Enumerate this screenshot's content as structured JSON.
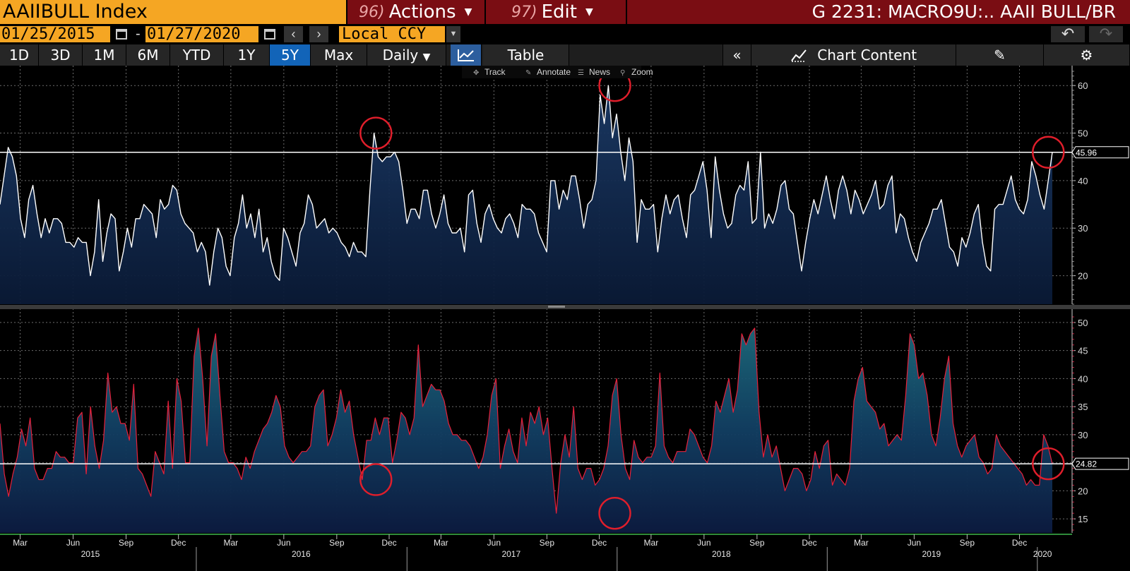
{
  "header": {
    "ticker": "AAIIBULL Index",
    "actions_num": "96)",
    "actions_label": "Actions",
    "edit_num": "97)",
    "edit_label": "Edit",
    "chart_title": "G 2231: MACRO9U:.. AAII BULL/BR"
  },
  "date_range": {
    "start": "01/25/2015",
    "separator": "-",
    "end": "01/27/2020",
    "currency": "Local CCY"
  },
  "toolbar": {
    "ranges": [
      "1D",
      "3D",
      "1M",
      "6M",
      "YTD",
      "1Y",
      "5Y",
      "Max"
    ],
    "active_range": "5Y",
    "frequency": "Daily",
    "table_label": "Table",
    "chart_content_label": "Chart Content"
  },
  "chart_tools": [
    "Track",
    "Annotate",
    "News",
    "Zoom"
  ],
  "colors": {
    "accent_orange": "#f5a623",
    "menu_red": "#7a0d13",
    "active_blue": "#1264b8",
    "upper_line": "#ffffff",
    "lower_line": "#e8203a",
    "marker_circle": "#e01e2b"
  },
  "chart_data": [
    {
      "type": "area",
      "y_ticks": [
        20,
        30,
        40,
        50,
        60
      ],
      "ylim": [
        14,
        63
      ],
      "last_value": "45.96",
      "reference_line": 45.96,
      "x_start": "2015-01-25",
      "x_end": "2020-01-27",
      "series": [
        {
          "values": [
            35,
            41,
            47,
            45,
            41,
            32,
            28,
            36,
            39,
            33,
            28,
            32,
            29,
            32,
            32,
            31,
            27,
            27,
            26,
            28,
            27,
            27,
            20,
            25,
            36,
            23,
            29,
            33,
            32,
            21,
            25,
            30,
            26,
            32,
            32,
            35,
            34,
            33,
            28,
            36,
            34,
            35,
            39,
            38,
            33,
            31,
            30,
            29,
            25,
            27,
            25,
            18,
            25,
            30,
            28,
            22,
            20,
            28,
            31,
            37,
            30,
            33,
            28,
            34,
            25,
            28,
            23,
            20,
            19,
            30,
            28,
            25,
            22,
            29,
            31,
            37,
            35,
            30,
            31,
            32,
            29,
            30,
            29,
            27,
            26,
            24,
            27,
            25,
            25,
            24,
            38,
            50,
            45,
            44,
            45,
            45,
            46,
            44,
            38,
            31,
            34,
            34,
            32,
            38,
            38,
            33,
            30,
            33,
            37,
            31,
            29,
            29,
            30,
            25,
            37,
            38,
            31,
            27,
            33,
            35,
            32,
            30,
            29,
            32,
            33,
            31,
            28,
            35,
            34,
            34,
            33,
            29,
            27,
            25,
            40,
            40,
            34,
            38,
            36,
            41,
            41,
            36,
            30,
            35,
            36,
            40,
            58,
            52,
            60,
            49,
            54,
            46,
            40,
            49,
            44,
            27,
            36,
            34,
            34,
            35,
            25,
            32,
            37,
            33,
            36,
            37,
            32,
            28,
            37,
            38,
            41,
            44,
            38,
            28,
            45,
            38,
            33,
            30,
            31,
            37,
            39,
            38,
            44,
            31,
            32,
            46,
            30,
            33,
            31,
            34,
            39,
            40,
            34,
            33,
            27,
            21,
            27,
            32,
            36,
            33,
            37,
            41,
            36,
            32,
            38,
            41,
            38,
            33,
            38,
            36,
            33,
            35,
            37,
            40,
            34,
            35,
            39,
            41,
            29,
            33,
            32,
            28,
            25,
            23,
            27,
            29,
            31,
            34,
            34,
            36,
            31,
            26,
            25,
            22,
            28,
            26,
            29,
            33,
            35,
            27,
            22,
            21,
            34,
            35,
            35,
            38,
            41,
            36,
            34,
            33,
            36,
            44,
            41,
            37,
            34,
            40,
            45.96
          ]
        }
      ]
    },
    {
      "type": "area",
      "y_ticks": [
        15,
        20,
        25,
        30,
        35,
        40,
        45,
        50
      ],
      "ylim": [
        12.5,
        51.5
      ],
      "last_value": "24.82",
      "reference_line": 24.82,
      "x_start": "2015-01-25",
      "x_end": "2020-01-27",
      "series": [
        {
          "values": [
            32,
            23,
            19,
            23,
            26,
            31,
            28,
            33,
            24,
            22,
            22,
            24,
            24,
            27,
            26,
            26,
            25,
            25,
            33,
            34,
            23,
            35,
            28,
            24,
            29,
            41,
            34,
            35,
            32,
            32,
            29,
            39,
            24,
            23,
            21,
            19,
            27,
            25,
            23,
            36,
            24,
            40,
            36,
            25,
            25,
            44,
            49,
            40,
            28,
            44,
            48,
            37,
            27,
            25,
            25,
            24,
            22,
            26,
            24,
            27,
            29,
            31,
            32,
            34,
            37,
            35,
            28,
            26,
            25,
            26,
            27,
            27,
            28,
            35,
            37,
            38,
            28,
            30,
            33,
            38,
            34,
            36,
            30,
            26,
            22,
            29,
            29,
            33,
            30,
            33,
            33,
            25,
            29,
            34,
            33,
            30,
            33,
            46,
            35,
            37,
            39,
            38,
            38,
            36,
            32,
            30,
            30,
            29,
            29,
            28,
            26,
            24,
            26,
            30,
            37,
            40,
            24,
            28,
            31,
            27,
            25,
            33,
            28,
            34,
            32,
            35,
            30,
            33,
            24,
            16,
            25,
            30,
            26,
            35,
            24,
            22,
            24,
            24,
            21,
            22,
            24,
            28,
            37,
            40,
            30,
            24,
            22,
            29,
            26,
            25,
            26,
            26,
            28,
            41,
            28,
            26,
            25,
            27,
            27,
            27,
            31,
            30,
            28,
            26,
            25,
            28,
            36,
            34,
            37,
            40,
            34,
            38,
            48,
            46,
            48,
            49,
            34,
            26,
            30,
            26,
            28,
            24,
            20,
            22,
            24,
            24,
            23,
            20,
            22,
            27,
            24,
            28,
            29,
            21,
            23,
            22,
            21,
            24,
            36,
            40,
            42,
            36,
            35,
            34,
            31,
            32,
            28,
            29,
            30,
            29,
            37,
            48,
            46,
            40,
            41,
            37,
            30,
            28,
            33,
            40,
            44,
            32,
            28,
            26,
            28,
            29,
            30,
            26,
            25,
            23,
            24,
            30,
            28,
            27,
            26,
            25,
            24,
            23,
            21,
            22,
            21,
            21,
            30,
            28,
            24.82
          ]
        }
      ]
    }
  ],
  "x_axis": {
    "months": [
      {
        "label": "Mar",
        "date": "2015-03-01"
      },
      {
        "label": "Jun",
        "date": "2015-06-01"
      },
      {
        "label": "Sep",
        "date": "2015-09-01"
      },
      {
        "label": "Dec",
        "date": "2015-12-01"
      },
      {
        "label": "Mar",
        "date": "2016-03-01"
      },
      {
        "label": "Jun",
        "date": "2016-06-01"
      },
      {
        "label": "Sep",
        "date": "2016-09-01"
      },
      {
        "label": "Dec",
        "date": "2016-12-01"
      },
      {
        "label": "Mar",
        "date": "2017-03-01"
      },
      {
        "label": "Jun",
        "date": "2017-06-01"
      },
      {
        "label": "Sep",
        "date": "2017-09-01"
      },
      {
        "label": "Dec",
        "date": "2017-12-01"
      },
      {
        "label": "Mar",
        "date": "2018-03-01"
      },
      {
        "label": "Jun",
        "date": "2018-06-01"
      },
      {
        "label": "Sep",
        "date": "2018-09-01"
      },
      {
        "label": "Dec",
        "date": "2018-12-01"
      },
      {
        "label": "Mar",
        "date": "2019-03-01"
      },
      {
        "label": "Jun",
        "date": "2019-06-01"
      },
      {
        "label": "Sep",
        "date": "2019-09-01"
      },
      {
        "label": "Dec",
        "date": "2019-12-01"
      }
    ],
    "years": [
      {
        "label": "2015",
        "date": "2015-07-01"
      },
      {
        "label": "2016",
        "date": "2016-07-01"
      },
      {
        "label": "2017",
        "date": "2017-07-01"
      },
      {
        "label": "2018",
        "date": "2018-07-01"
      },
      {
        "label": "2019",
        "date": "2019-07-01"
      },
      {
        "label": "2020",
        "date": "2020-01-10"
      }
    ],
    "year_boundaries": [
      "2016-01-01",
      "2017-01-01",
      "2018-01-01",
      "2019-01-01",
      "2020-01-01"
    ]
  },
  "annotations": [
    {
      "panel": 0,
      "date": "2016-11-08",
      "value": 50
    },
    {
      "panel": 0,
      "date": "2017-12-28",
      "value": 60
    },
    {
      "panel": 0,
      "date": "2020-01-20",
      "value": 45.96
    },
    {
      "panel": 1,
      "date": "2016-11-08",
      "value": 22
    },
    {
      "panel": 1,
      "date": "2017-12-28",
      "value": 16
    },
    {
      "panel": 1,
      "date": "2020-01-20",
      "value": 24.82
    }
  ]
}
